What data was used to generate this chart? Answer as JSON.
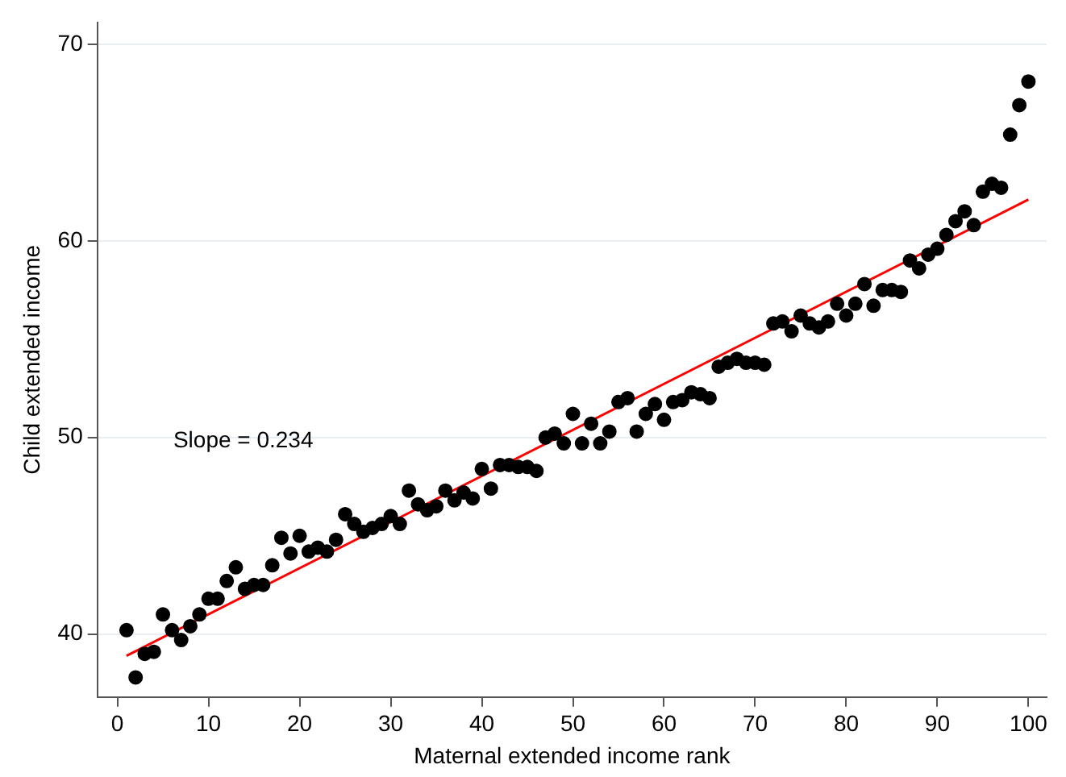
{
  "chart_data": {
    "type": "scatter",
    "xlabel": "Maternal extended income rank",
    "ylabel": "Child extended income",
    "xlim": [
      -2.2,
      102
    ],
    "ylim": [
      36.8,
      71.1
    ],
    "xticks": [
      0,
      10,
      20,
      30,
      40,
      50,
      60,
      70,
      80,
      90,
      100
    ],
    "yticks": [
      40,
      50,
      60,
      70
    ],
    "grid": "y",
    "legend": false,
    "annotations": [
      "Slope = 0.234"
    ],
    "series": [
      {
        "color": "#000000",
        "marker": "circle",
        "x": [
          1,
          2,
          3,
          4,
          5,
          6,
          7,
          8,
          9,
          10,
          11,
          12,
          13,
          14,
          15,
          16,
          17,
          18,
          19,
          20,
          21,
          22,
          23,
          24,
          25,
          26,
          27,
          28,
          29,
          30,
          31,
          32,
          33,
          34,
          35,
          36,
          37,
          38,
          39,
          40,
          41,
          42,
          43,
          44,
          45,
          46,
          47,
          48,
          49,
          50,
          51,
          52,
          53,
          54,
          55,
          56,
          57,
          58,
          59,
          60,
          61,
          62,
          63,
          64,
          65,
          66,
          67,
          68,
          69,
          70,
          71,
          72,
          73,
          74,
          75,
          76,
          77,
          78,
          79,
          80,
          81,
          82,
          83,
          84,
          85,
          86,
          87,
          88,
          89,
          90,
          91,
          92,
          93,
          94,
          95,
          96,
          97,
          98,
          99,
          100
        ],
        "values": [
          40.2,
          37.8,
          39.0,
          39.1,
          41.0,
          40.2,
          39.7,
          40.4,
          41.0,
          41.8,
          41.8,
          42.7,
          43.4,
          42.3,
          42.5,
          42.5,
          43.5,
          44.9,
          44.1,
          45.0,
          44.2,
          44.4,
          44.2,
          44.8,
          46.1,
          45.6,
          45.2,
          45.4,
          45.6,
          46.0,
          45.6,
          47.3,
          46.6,
          46.3,
          46.5,
          47.3,
          46.8,
          47.2,
          46.9,
          48.4,
          47.4,
          48.6,
          48.6,
          48.5,
          48.5,
          48.3,
          50.0,
          50.2,
          49.7,
          51.2,
          49.7,
          50.7,
          49.7,
          50.3,
          51.8,
          52.0,
          50.3,
          51.2,
          51.7,
          50.9,
          51.8,
          51.9,
          52.3,
          52.2,
          52.0,
          53.6,
          53.8,
          54.0,
          53.8,
          53.8,
          53.7,
          55.8,
          55.9,
          55.4,
          56.2,
          55.8,
          55.6,
          55.9,
          56.8,
          56.2,
          56.8,
          57.8,
          56.7,
          57.5,
          57.5,
          57.4,
          59.0,
          58.6,
          59.3,
          59.6,
          60.3,
          61.0,
          61.5,
          60.8,
          62.5,
          62.9,
          62.7,
          65.4,
          66.9,
          68.1
        ]
      },
      {
        "type": "line",
        "color": "#ff0000",
        "x": [
          1,
          100
        ],
        "values": [
          38.9,
          62.1
        ]
      }
    ]
  }
}
